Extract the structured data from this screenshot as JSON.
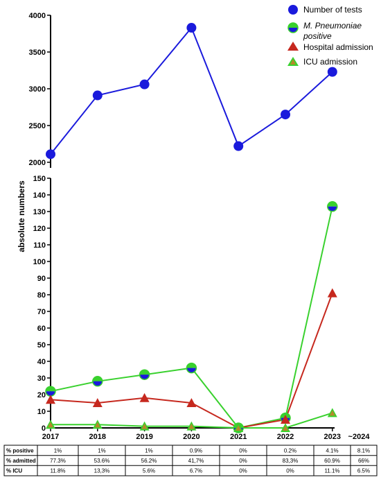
{
  "chart_data": {
    "type": "line",
    "x": [
      "2017",
      "2018",
      "2019",
      "2020",
      "2021",
      "2022",
      "2023"
    ],
    "extra_x_label": "~2024",
    "ylabel": "absolute numbers",
    "axis_broken": true,
    "upper_ylim": [
      2000,
      4000
    ],
    "upper_ticks": [
      2000,
      2500,
      3000,
      3500,
      4000
    ],
    "lower_ylim": [
      0,
      150
    ],
    "lower_ticks": [
      0,
      10,
      20,
      30,
      40,
      50,
      60,
      70,
      80,
      90,
      100,
      110,
      120,
      130,
      140,
      150
    ],
    "legend_position": "top-right",
    "series": [
      {
        "name": "Number of tests",
        "panel": "upper",
        "values": [
          2110,
          2910,
          3060,
          3830,
          2220,
          2650,
          3230
        ],
        "color": "#1a1adc",
        "marker": "circle"
      },
      {
        "name_italic": "M. Pneumoniae",
        "name_rest": "positive",
        "panel": "lower",
        "values": [
          22,
          28,
          32,
          36,
          0,
          6,
          133
        ],
        "color": "#39d12e",
        "marker": "half-circle"
      },
      {
        "name": "Hospital admission",
        "panel": "lower",
        "values": [
          17,
          15,
          18,
          15,
          0,
          5,
          81
        ],
        "color": "#c6281e",
        "marker": "triangle"
      },
      {
        "name": "ICU admission",
        "panel": "lower",
        "values": [
          2,
          2,
          1,
          1,
          0,
          0,
          9
        ],
        "color": "#39d12e",
        "marker": "triangle-green"
      }
    ],
    "table": {
      "rows": [
        {
          "label": "% positive",
          "values": [
            "1%",
            "1%",
            "1%",
            "0.9%",
            "0%",
            "0.2%",
            "4.1%",
            "8.1%"
          ]
        },
        {
          "label": "% admitted",
          "values": [
            "77.3%",
            "53.6%",
            "56.2%",
            "41,7%",
            "0%",
            "83,3%",
            "60.9%",
            "66%"
          ]
        },
        {
          "label": "% ICU",
          "values": [
            "11.8%",
            "13,3%",
            "5.6%",
            "6.7%",
            "0%",
            "0%",
            "11.1%",
            "6.5%"
          ]
        }
      ]
    }
  }
}
